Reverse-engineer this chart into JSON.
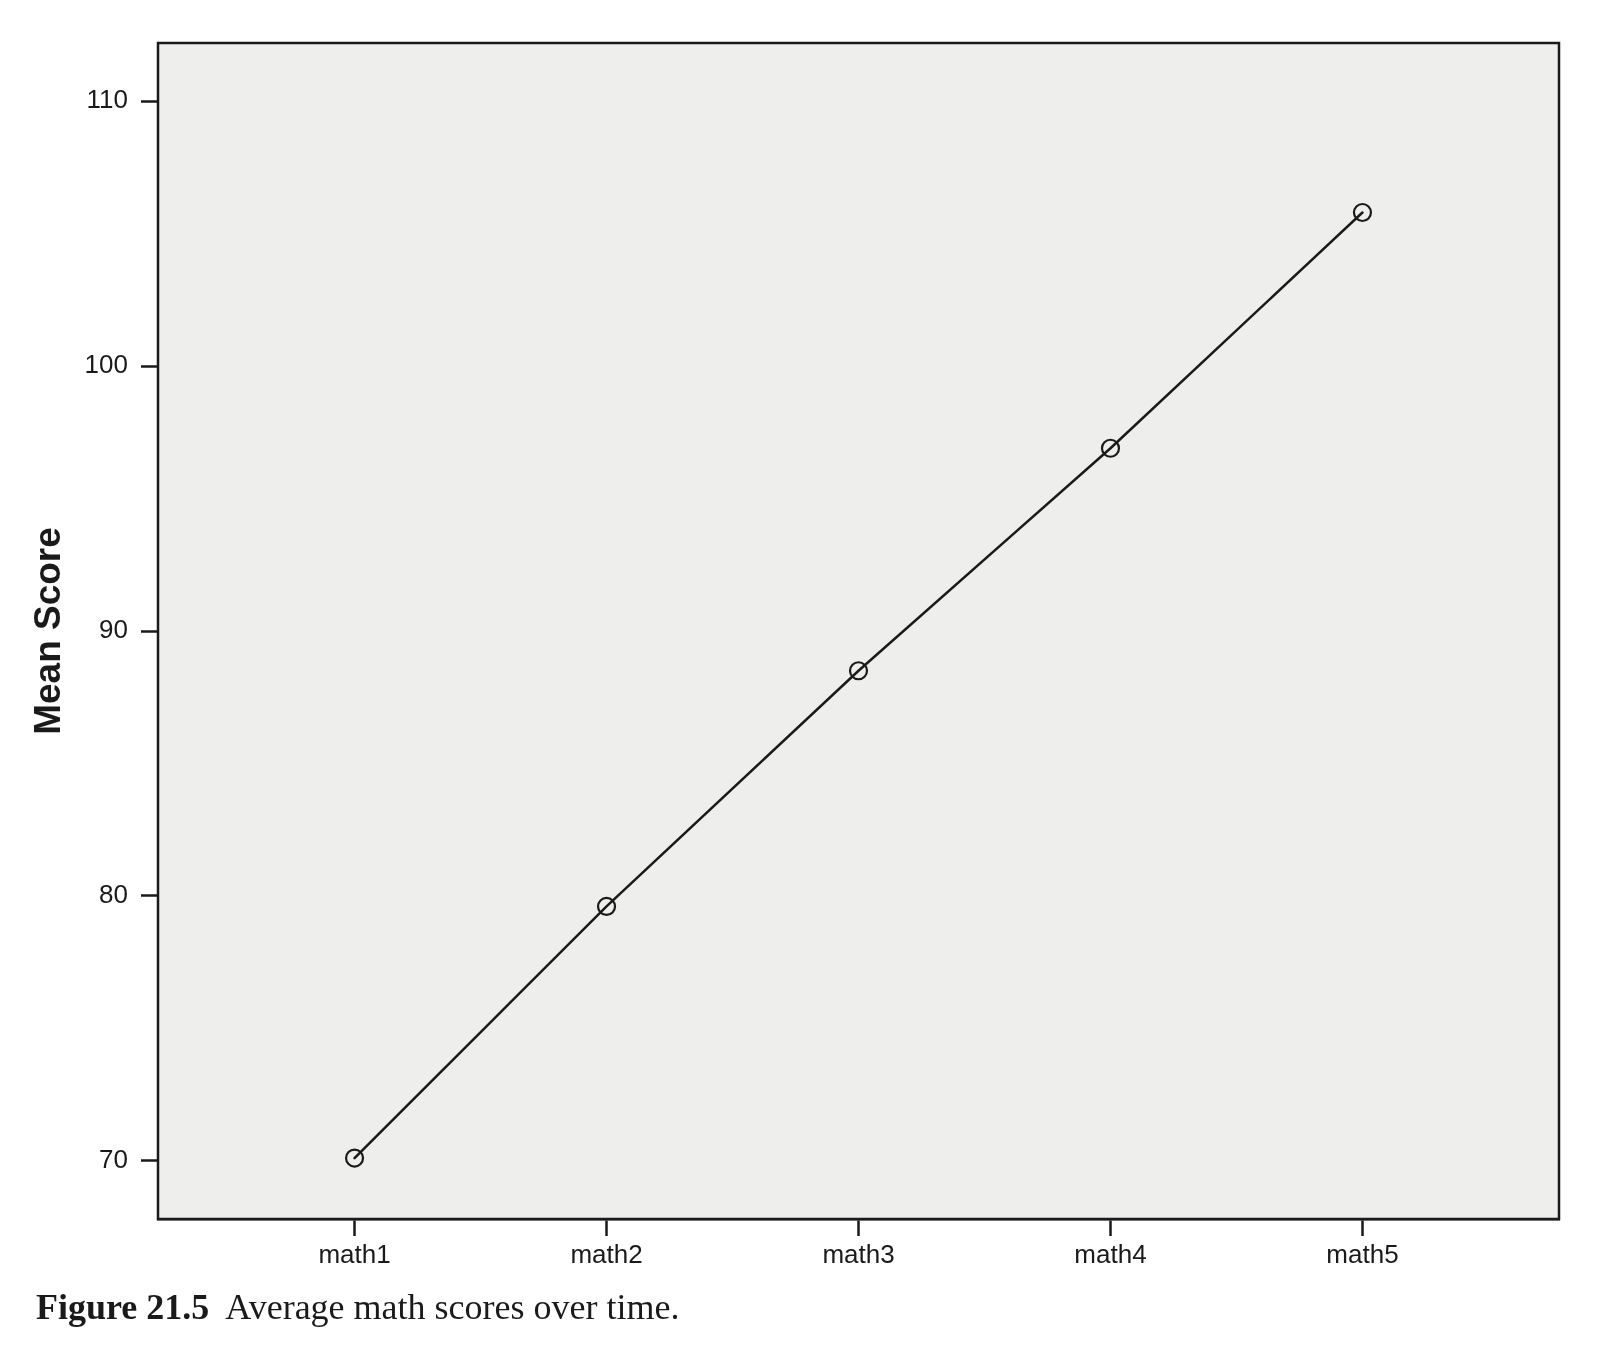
{
  "chart_data": {
    "type": "line",
    "categories": [
      "math1",
      "math2",
      "math3",
      "math4",
      "math5"
    ],
    "values": [
      70.1,
      79.6,
      88.5,
      96.9,
      105.8
    ],
    "color": "#1a1a1a",
    "ylabel": "Mean Score",
    "ylim": [
      67.8,
      112.2
    ],
    "yticks": [
      70,
      80,
      90,
      100,
      110
    ],
    "marker": "circle",
    "annotations": [
      "Figure 21.5  Average math scores over time."
    ]
  }
}
